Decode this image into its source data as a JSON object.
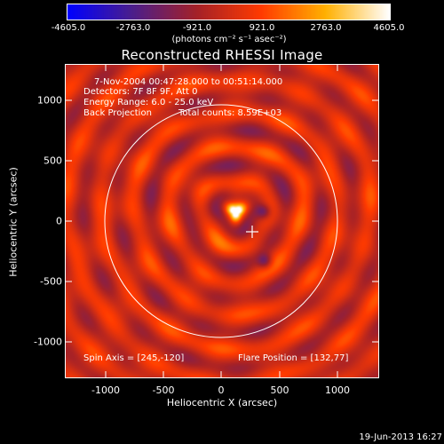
{
  "colorbar": {
    "ticks": [
      "-4605.0",
      "-2763.0",
      "-921.0",
      "921.0",
      "2763.0",
      "4605.0"
    ],
    "unit": "(photons cm⁻² s⁻¹ asec⁻²)"
  },
  "title": "Reconstructed RHESSI Image",
  "info": {
    "time_range": "7-Nov-2004 00:47:28.000 to 00:51:14.000",
    "detectors": "Detectors: 7F 8F 9F, Att 0",
    "energy_range": "Energy Range: 6.0 - 25.0 keV",
    "method": "Back Projection",
    "total_counts": "Total counts: 8.59E+03",
    "spin_axis": "Spin Axis = [245,-120]",
    "flare_position": "Flare Position = [132,77]"
  },
  "axes": {
    "xlabel": "Heliocentric X (arcsec)",
    "ylabel": "Heliocentric Y (arcsec)",
    "xticks": [
      "-1000",
      "-500",
      "0",
      "500",
      "1000"
    ],
    "yticks": [
      "1000",
      "500",
      "0",
      "-500",
      "-1000"
    ]
  },
  "footer": {
    "date": "19-Jun-2013 16:27"
  },
  "colors": {
    "background": "#000000",
    "colormap": [
      "#0000ff",
      "#4b1e8c",
      "#a42128",
      "#ff3a00",
      "#ffb000",
      "#ffffff"
    ]
  }
}
